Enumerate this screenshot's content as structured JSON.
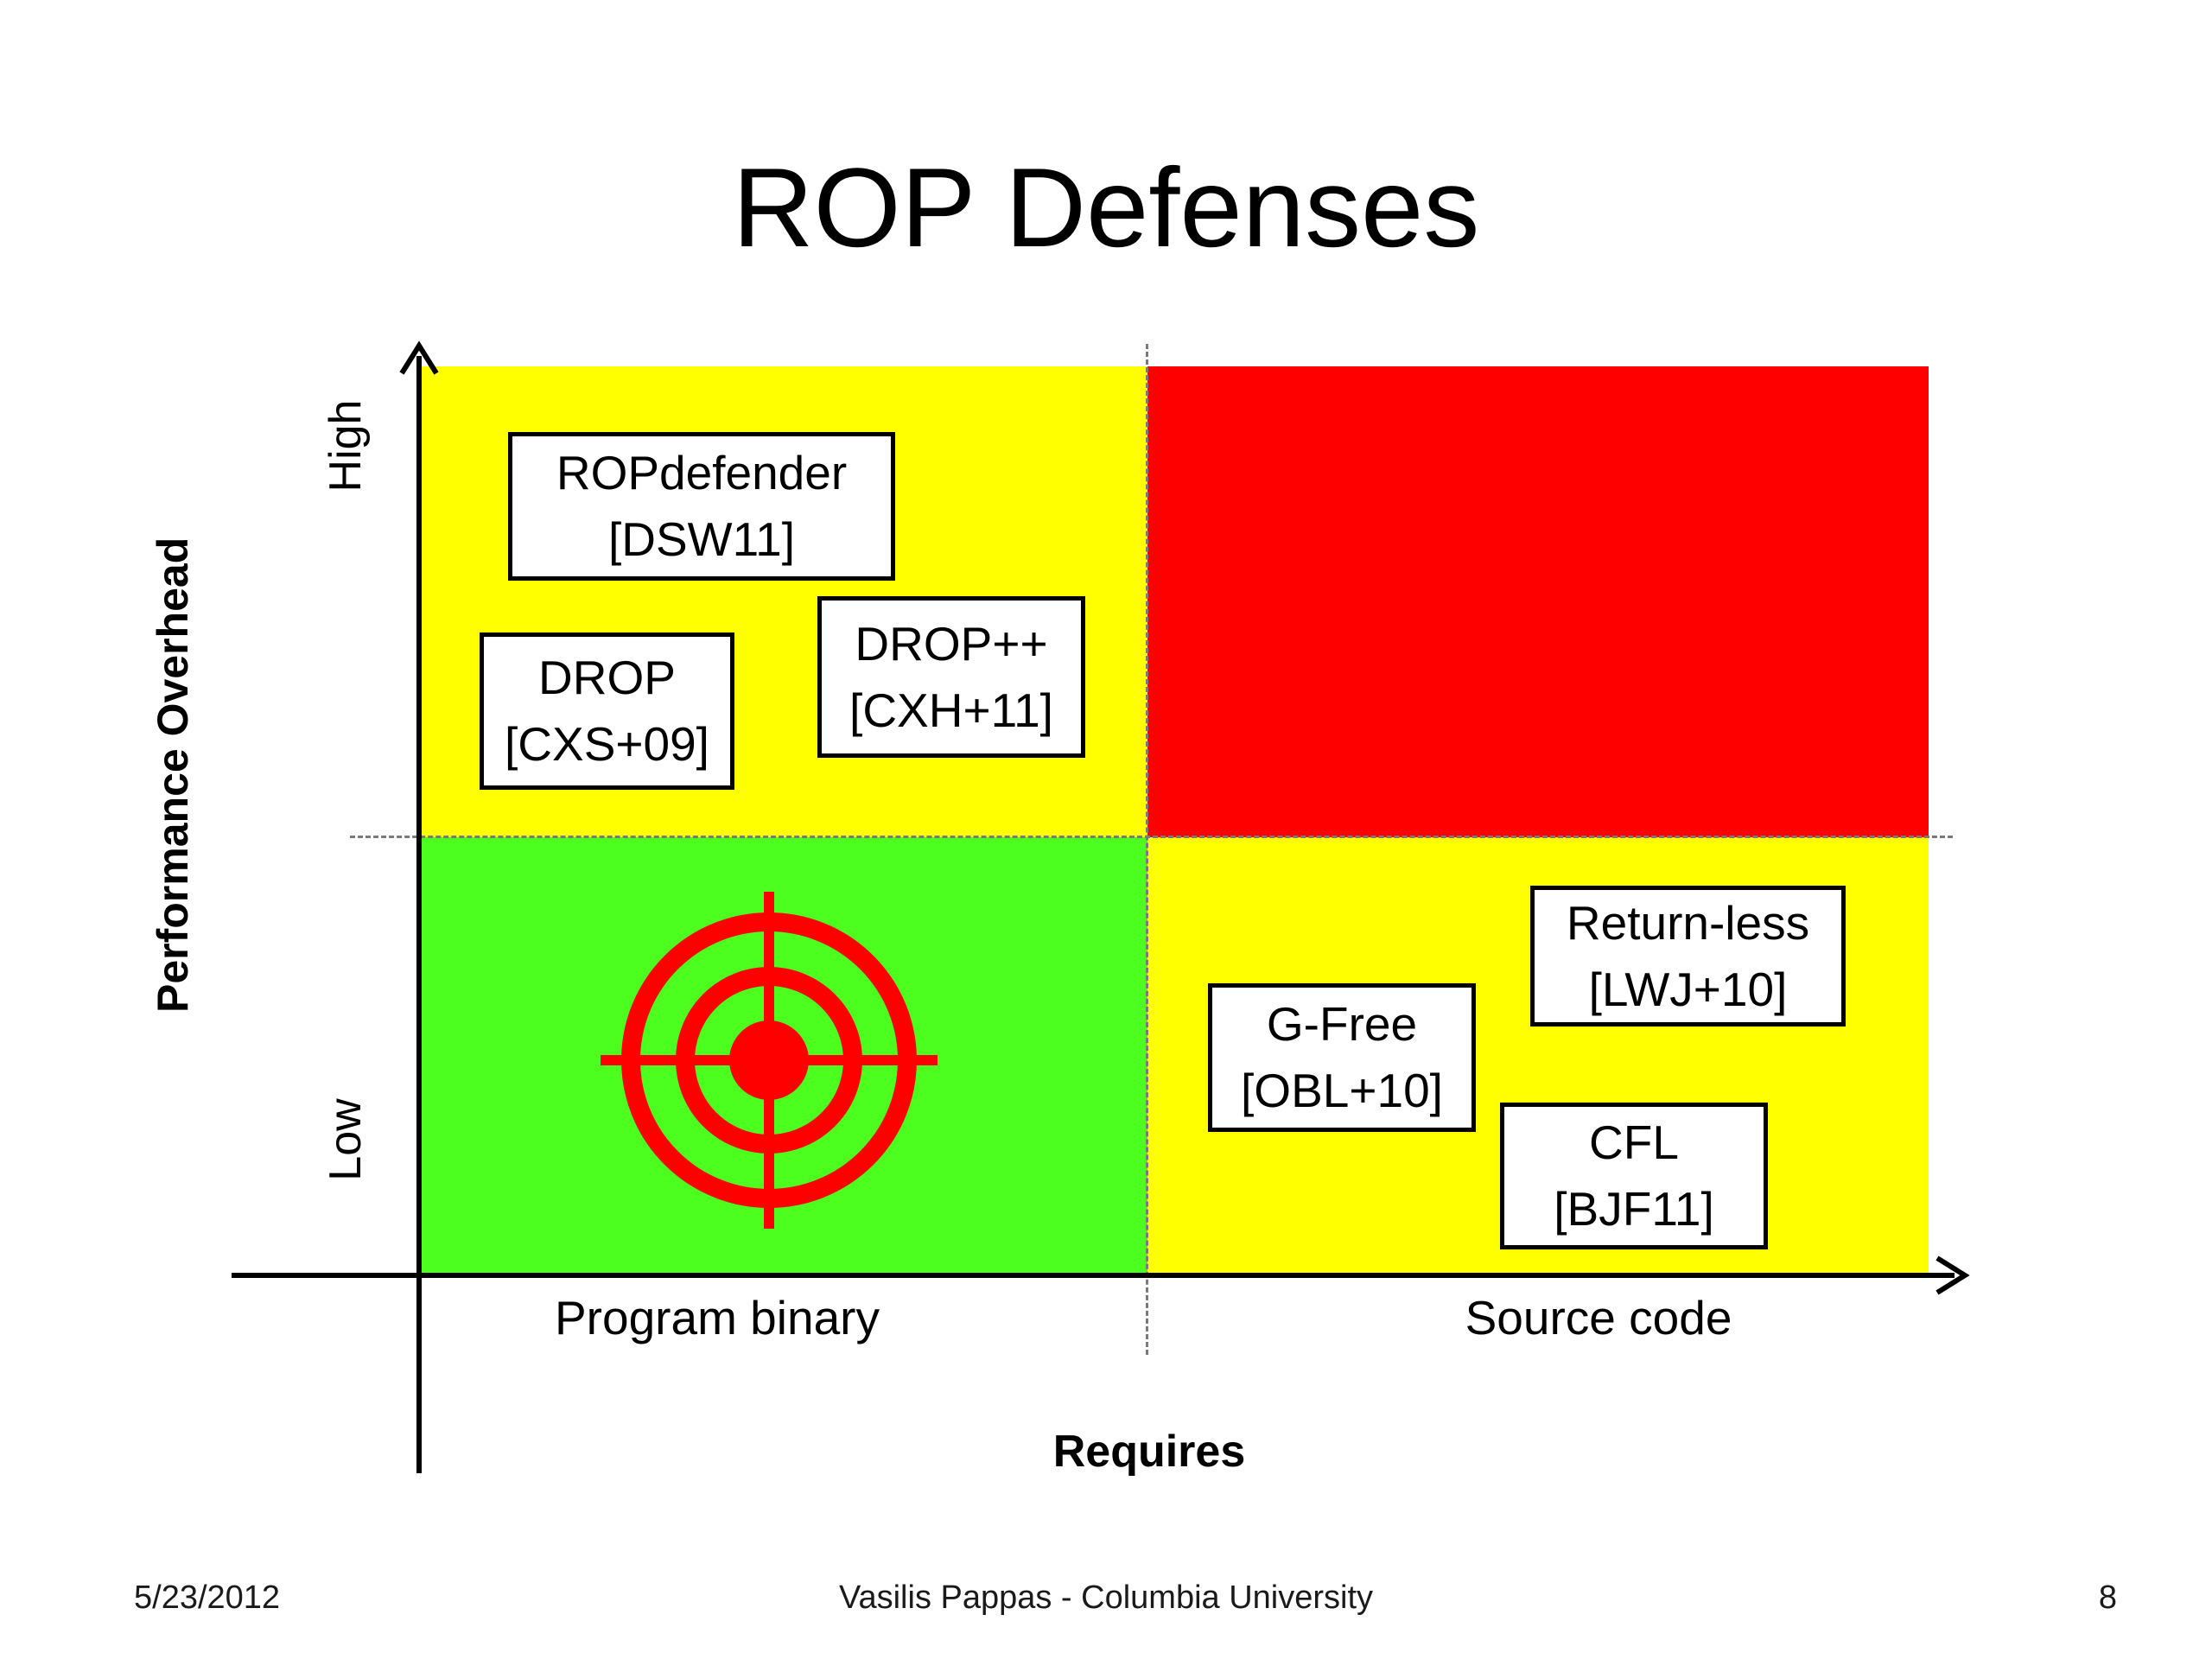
{
  "title": "ROP Defenses",
  "colors": {
    "quadrant_top_left": "#ffff00",
    "quadrant_top_right": "#ff0000",
    "quadrant_bottom_left": "#4dff1f",
    "quadrant_bottom_right": "#ffff00",
    "target": "#ff0000"
  },
  "y_axis": {
    "title": "Performance Overhead",
    "high_label": "High",
    "low_label": "Low"
  },
  "x_axis": {
    "title": "Requires",
    "left_label": "Program binary",
    "right_label": "Source code"
  },
  "defenses": {
    "ropdefender": {
      "name": "ROPdefender",
      "ref": "[DSW11]",
      "quadrant": "high-binary"
    },
    "drop": {
      "name": "DROP",
      "ref": "[CXS+09]",
      "quadrant": "high-binary"
    },
    "dropplus": {
      "name": "DROP++",
      "ref": "[CXH+11]",
      "quadrant": "high-binary"
    },
    "returnless": {
      "name": "Return-less",
      "ref": "[LWJ+10]",
      "quadrant": "low-source"
    },
    "gfree": {
      "name": "G-Free",
      "ref": "[OBL+10]",
      "quadrant": "low-source"
    },
    "cfl": {
      "name": "CFL",
      "ref": "[BJF11]",
      "quadrant": "low-source"
    }
  },
  "target_icon": "crosshair-target-icon",
  "footer": {
    "date": "5/23/2012",
    "author": "Vasilis Pappas - Columbia University",
    "page": "8"
  }
}
